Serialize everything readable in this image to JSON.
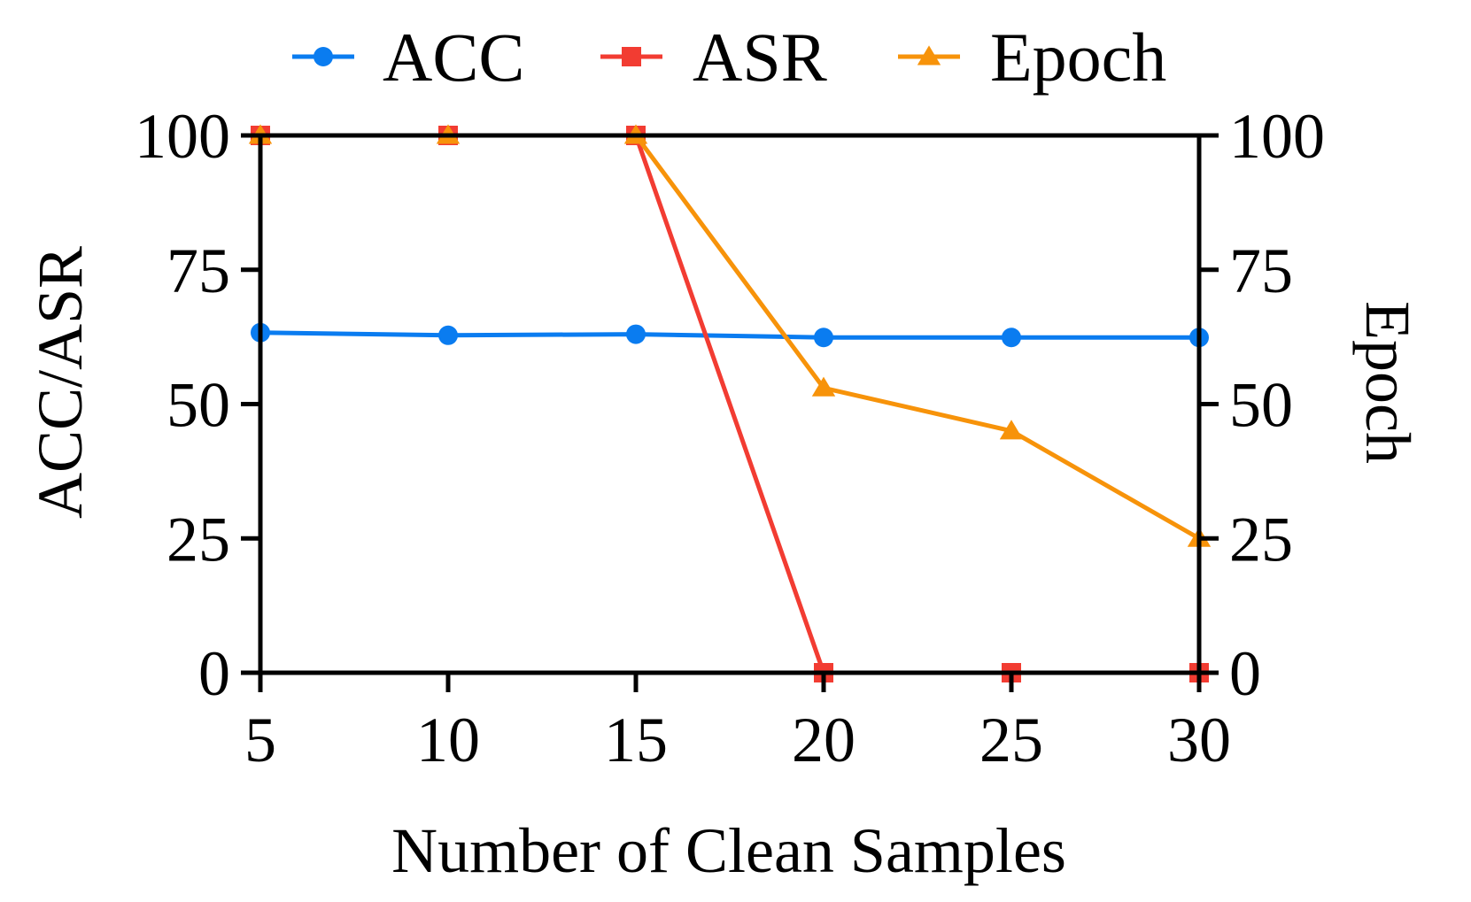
{
  "chart_data": {
    "type": "line",
    "xlabel": "Number of Clean Samples",
    "ylabel": "ACC/ASR",
    "y2label": "Epoch",
    "x": [
      5,
      10,
      15,
      20,
      25,
      30
    ],
    "x_ticks": [
      "5",
      "10",
      "15",
      "20",
      "25",
      "30"
    ],
    "ylim": [
      0,
      100
    ],
    "y_ticks": [
      "0",
      "25",
      "50",
      "75",
      "100"
    ],
    "y2lim": [
      0,
      100
    ],
    "y2_ticks": [
      "0",
      "25",
      "50",
      "75",
      "100"
    ],
    "grid": false,
    "legend_position": "top",
    "series": [
      {
        "name": "ACC",
        "axis": "left",
        "color": "#0a7cf0",
        "marker": "circle",
        "values": [
          63.3,
          62.8,
          63.0,
          62.4,
          62.4,
          62.4
        ]
      },
      {
        "name": "ASR",
        "axis": "left",
        "color": "#f23c32",
        "marker": "square",
        "values": [
          100,
          100,
          100,
          0,
          0,
          0
        ]
      },
      {
        "name": "Epoch",
        "axis": "right",
        "color": "#f7930a",
        "marker": "triangle",
        "values": [
          100,
          100,
          100,
          53,
          45,
          25
        ]
      }
    ]
  }
}
